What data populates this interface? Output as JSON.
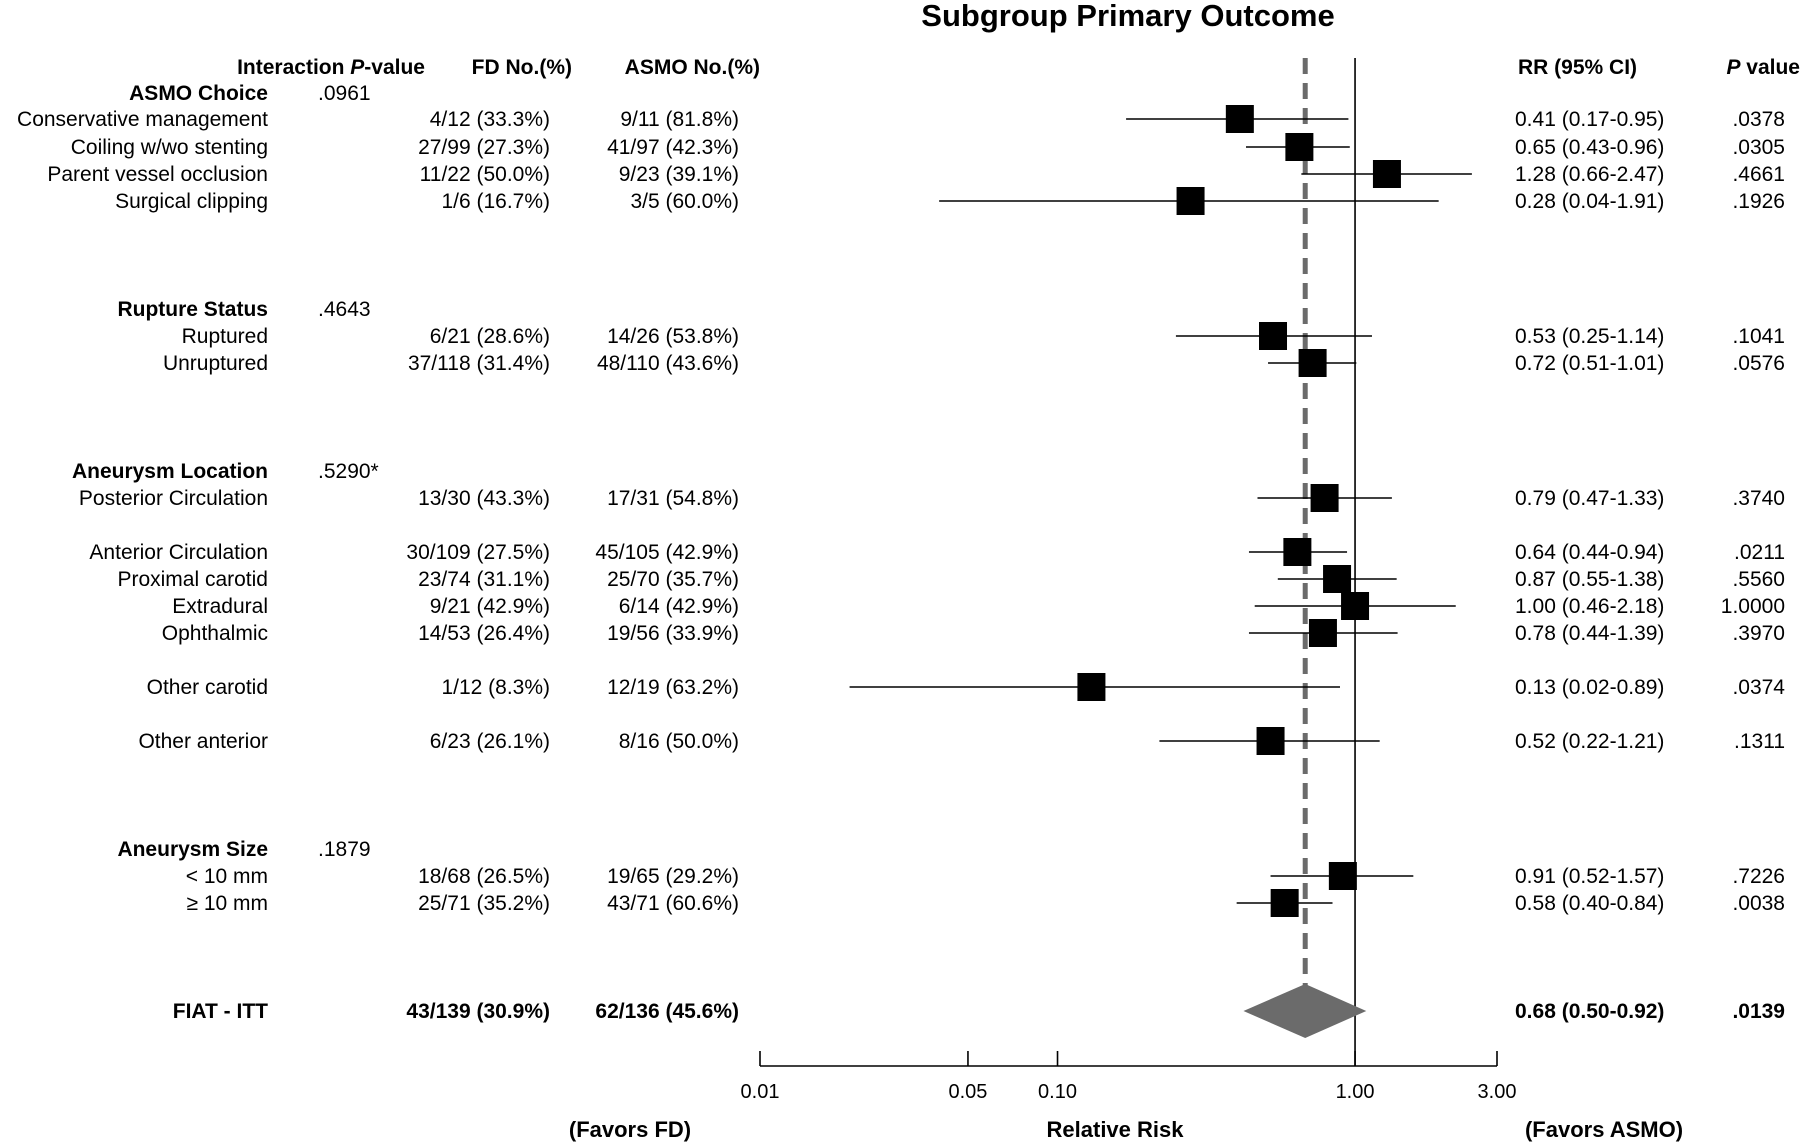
{
  "chart_data": {
    "type": "forest",
    "title": "Subgroup Primary Outcome",
    "columns": {
      "interaction_prefix": "Interaction ",
      "interaction_p": "P",
      "interaction_suffix": "-value",
      "fd": "FD No.(%)",
      "asmo": "ASMO No.(%)",
      "rr": "RR (95% CI)",
      "p_italic": "P",
      "p_suffix": " value"
    },
    "xlabel": "Relative Risk",
    "favors_left": "(Favors FD)",
    "favors_right": "(Favors ASMO)",
    "x_scale": "log",
    "xlim": [
      0.01,
      3.0
    ],
    "x_ticks": [
      {
        "value": 0.01,
        "label": "0.01"
      },
      {
        "value": 0.05,
        "label": "0.05"
      },
      {
        "value": 0.1,
        "label": "0.10"
      },
      {
        "value": 1.0,
        "label": "1.00"
      },
      {
        "value": 3.0,
        "label": "3.00"
      }
    ],
    "reference_line": 1.0,
    "overall_line": 0.68,
    "groups": [
      {
        "label": "ASMO Choice",
        "interaction_p": ".0961"
      },
      {
        "label": "Rupture Status",
        "interaction_p": ".4643"
      },
      {
        "label": "Aneurysm Location",
        "interaction_p": ".5290*"
      },
      {
        "label": "Aneurysm Size",
        "interaction_p": ".1879"
      }
    ],
    "rows": [
      {
        "group": 0,
        "label": "Conservative management",
        "fd": "4/12 (33.3%)",
        "asmo": "9/11 (81.8%)",
        "rr": 0.41,
        "lo": 0.17,
        "hi": 0.95,
        "rr_text": "0.41 (0.17-0.95)",
        "p": ".0378"
      },
      {
        "group": 0,
        "label": "Coiling w/wo stenting",
        "fd": "27/99 (27.3%)",
        "asmo": "41/97 (42.3%)",
        "rr": 0.65,
        "lo": 0.43,
        "hi": 0.96,
        "rr_text": "0.65 (0.43-0.96)",
        "p": ".0305"
      },
      {
        "group": 0,
        "label": "Parent vessel occlusion",
        "fd": "11/22 (50.0%)",
        "asmo": "9/23 (39.1%)",
        "rr": 1.28,
        "lo": 0.66,
        "hi": 2.47,
        "rr_text": "1.28 (0.66-2.47)",
        "p": ".4661"
      },
      {
        "group": 0,
        "label": "Surgical clipping",
        "fd": "1/6 (16.7%)",
        "asmo": "3/5 (60.0%)",
        "rr": 0.28,
        "lo": 0.04,
        "hi": 1.91,
        "rr_text": "0.28 (0.04-1.91)",
        "p": ".1926"
      },
      {
        "group": 1,
        "label": "Ruptured",
        "fd": "6/21 (28.6%)",
        "asmo": "14/26 (53.8%)",
        "rr": 0.53,
        "lo": 0.25,
        "hi": 1.14,
        "rr_text": "0.53 (0.25-1.14)",
        "p": ".1041"
      },
      {
        "group": 1,
        "label": "Unruptured",
        "fd": "37/118 (31.4%)",
        "asmo": "48/110 (43.6%)",
        "rr": 0.72,
        "lo": 0.51,
        "hi": 1.01,
        "rr_text": "0.72 (0.51-1.01)",
        "p": ".0576"
      },
      {
        "group": 2,
        "label": "Posterior Circulation",
        "fd": "13/30 (43.3%)",
        "asmo": "17/31 (54.8%)",
        "rr": 0.79,
        "lo": 0.47,
        "hi": 1.33,
        "rr_text": "0.79 (0.47-1.33)",
        "p": ".3740"
      },
      {
        "group": 2,
        "label": "Anterior Circulation",
        "fd": "30/109 (27.5%)",
        "asmo": "45/105 (42.9%)",
        "rr": 0.64,
        "lo": 0.44,
        "hi": 0.94,
        "rr_text": "0.64 (0.44-0.94)",
        "p": ".0211"
      },
      {
        "group": 2,
        "label": "Proximal carotid",
        "fd": "23/74 (31.1%)",
        "asmo": "25/70 (35.7%)",
        "rr": 0.87,
        "lo": 0.55,
        "hi": 1.38,
        "rr_text": "0.87 (0.55-1.38)",
        "p": ".5560"
      },
      {
        "group": 2,
        "label": "Extradural",
        "fd": "9/21 (42.9%)",
        "asmo": "6/14 (42.9%)",
        "rr": 1.0,
        "lo": 0.46,
        "hi": 2.18,
        "rr_text": "1.00 (0.46-2.18)",
        "p": "1.0000"
      },
      {
        "group": 2,
        "label": "Ophthalmic",
        "fd": "14/53 (26.4%)",
        "asmo": "19/56 (33.9%)",
        "rr": 0.78,
        "lo": 0.44,
        "hi": 1.39,
        "rr_text": "0.78 (0.44-1.39)",
        "p": ".3970"
      },
      {
        "group": 2,
        "label": "Other carotid",
        "fd": "1/12 (8.3%)",
        "asmo": "12/19 (63.2%)",
        "rr": 0.13,
        "lo": 0.02,
        "hi": 0.89,
        "rr_text": "0.13 (0.02-0.89)",
        "p": ".0374"
      },
      {
        "group": 2,
        "label": "Other anterior",
        "fd": "6/23 (26.1%)",
        "asmo": "8/16 (50.0%)",
        "rr": 0.52,
        "lo": 0.22,
        "hi": 1.21,
        "rr_text": "0.52 (0.22-1.21)",
        "p": ".1311"
      },
      {
        "group": 3,
        "label": "< 10 mm",
        "fd": "18/68 (26.5%)",
        "asmo": "19/65 (29.2%)",
        "rr": 0.91,
        "lo": 0.52,
        "hi": 1.57,
        "rr_text": "0.91 (0.52-1.57)",
        "p": ".7226"
      },
      {
        "group": 3,
        "label": "≥ 10 mm",
        "fd": "25/71 (35.2%)",
        "asmo": "43/71 (60.6%)",
        "rr": 0.58,
        "lo": 0.4,
        "hi": 0.84,
        "rr_text": "0.58 (0.40-0.84)",
        "p": ".0038"
      }
    ],
    "overall": {
      "label": "FIAT - ITT",
      "fd": "43/139 (30.9%)",
      "asmo": "62/136 (45.6%)",
      "rr": 0.68,
      "lo": 0.5,
      "hi": 0.92,
      "rr_text": "0.68 (0.50-0.92)",
      "p": ".0139"
    },
    "colors": {
      "marker": "#000000",
      "diamond": "#6b6b6b",
      "dashed_line": "#6b6b6b"
    }
  }
}
